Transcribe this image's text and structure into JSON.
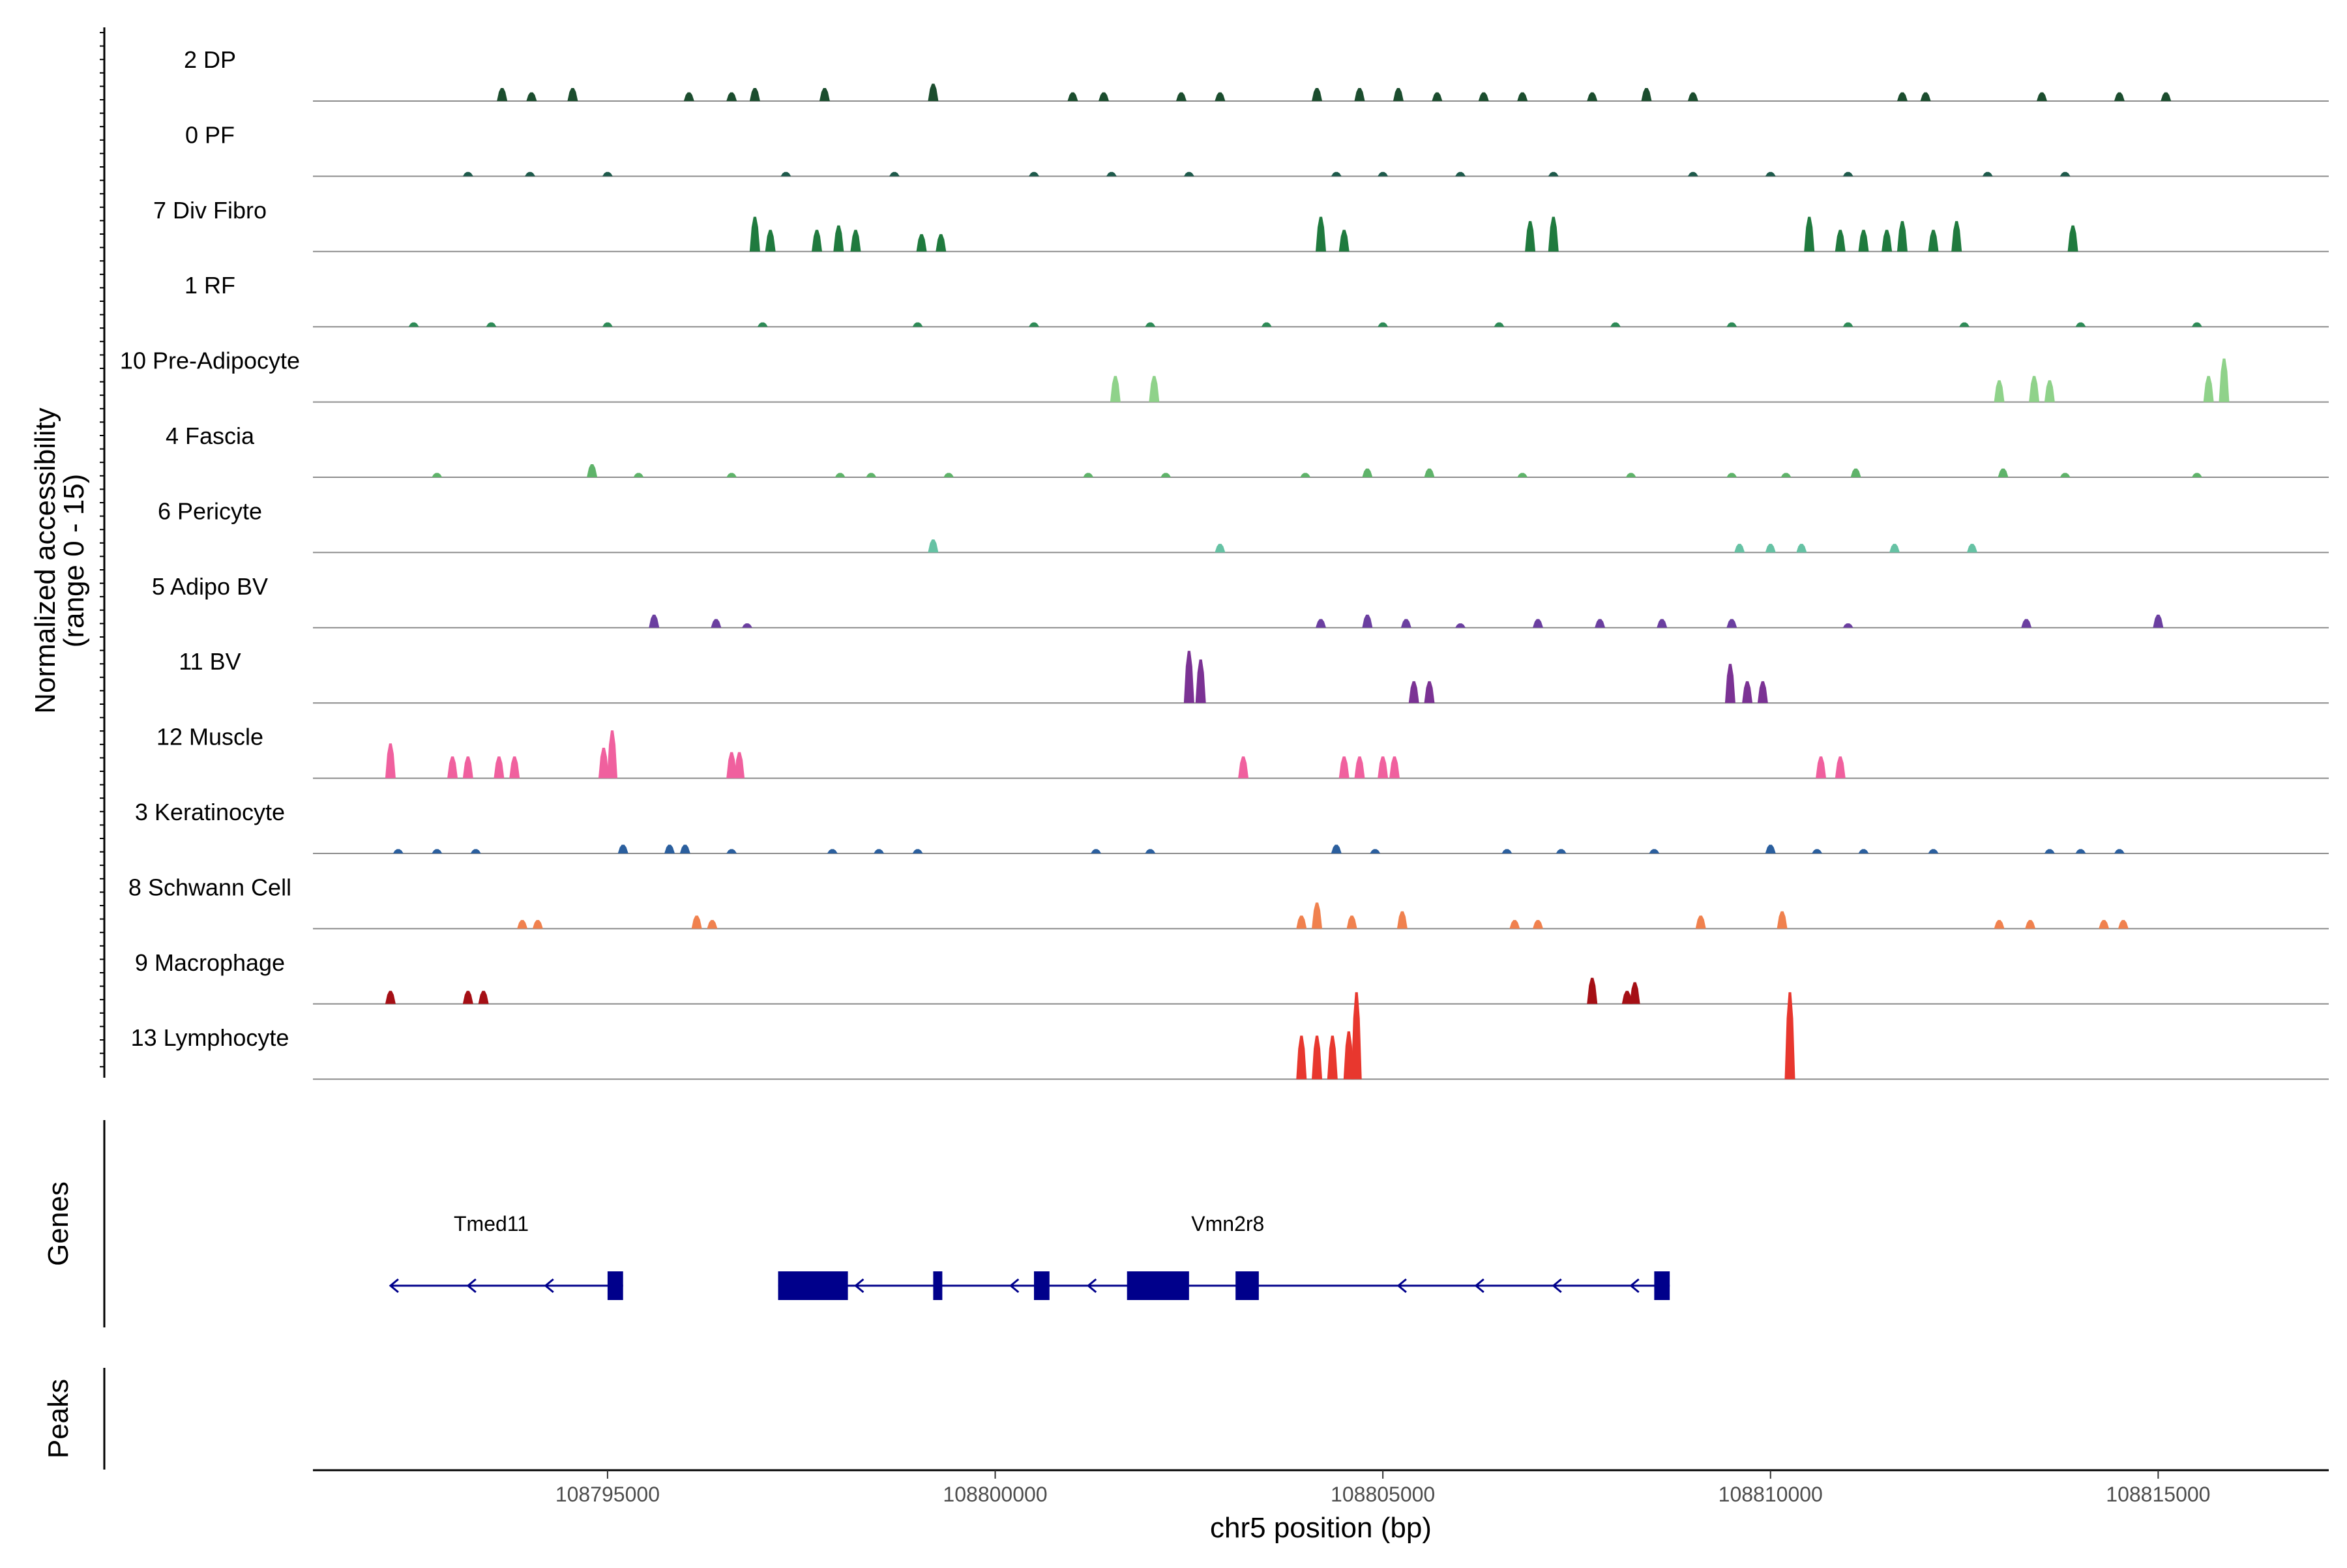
{
  "chart_data": {
    "type": "genome-coverage",
    "chromosome": "chr5",
    "xlim": [
      108791200,
      108817200
    ],
    "ylim": [
      0,
      15
    ],
    "ylabel_line1": "Normalized accessibility",
    "ylabel_line2": "(range 0 - 15)",
    "xlabel": "chr5 position (bp)",
    "xticks": [
      108795000,
      108800000,
      108805000,
      108810000,
      108815000
    ],
    "xtick_labels": [
      "108795000",
      "108800000",
      "108805000",
      "108810000",
      "108815000"
    ],
    "genes_panel_label": "Genes",
    "peaks_panel_label": "Peaks",
    "tracks": [
      {
        "label": "2 DP",
        "color": "#1b4d2e",
        "peaks": [
          [
            108793640,
            3
          ],
          [
            108794020,
            2
          ],
          [
            108794550,
            3
          ],
          [
            108796050,
            2
          ],
          [
            108796600,
            2
          ],
          [
            108796900,
            3
          ],
          [
            108797800,
            3
          ],
          [
            108799200,
            4
          ],
          [
            108801000,
            2
          ],
          [
            108801400,
            2
          ],
          [
            108802400,
            2
          ],
          [
            108802900,
            2
          ],
          [
            108804150,
            3
          ],
          [
            108804700,
            3
          ],
          [
            108805200,
            3
          ],
          [
            108805700,
            2
          ],
          [
            108806300,
            2
          ],
          [
            108806800,
            2
          ],
          [
            108807700,
            2
          ],
          [
            108808400,
            3
          ],
          [
            108809000,
            2
          ],
          [
            108811700,
            2
          ],
          [
            108812000,
            2
          ],
          [
            108813500,
            2
          ],
          [
            108814500,
            2
          ],
          [
            108815100,
            2
          ]
        ]
      },
      {
        "label": "0 PF",
        "color": "#1e5a4b",
        "peaks": [
          [
            108793200,
            1
          ],
          [
            108794000,
            1
          ],
          [
            108795000,
            1
          ],
          [
            108797300,
            1
          ],
          [
            108798700,
            1
          ],
          [
            108800500,
            1
          ],
          [
            108801500,
            1
          ],
          [
            108802500,
            1
          ],
          [
            108804400,
            1
          ],
          [
            108805000,
            1
          ],
          [
            108806000,
            1
          ],
          [
            108807200,
            1
          ],
          [
            108809000,
            1
          ],
          [
            108810000,
            1
          ],
          [
            108811000,
            1
          ],
          [
            108812800,
            1
          ],
          [
            108813800,
            1
          ]
        ]
      },
      {
        "label": "7 Div Fibro",
        "color": "#1f7a3e",
        "peaks": [
          [
            108796900,
            8
          ],
          [
            108797100,
            5
          ],
          [
            108797700,
            5
          ],
          [
            108797980,
            6
          ],
          [
            108798200,
            5
          ],
          [
            108799050,
            4
          ],
          [
            108799300,
            4
          ],
          [
            108804200,
            8
          ],
          [
            108804500,
            5
          ],
          [
            108806900,
            7
          ],
          [
            108807200,
            8
          ],
          [
            108810500,
            8
          ],
          [
            108810900,
            5
          ],
          [
            108811200,
            5
          ],
          [
            108811500,
            5
          ],
          [
            108811700,
            7
          ],
          [
            108812100,
            5
          ],
          [
            108812400,
            7
          ],
          [
            108813900,
            6
          ]
        ]
      },
      {
        "label": "1 RF",
        "color": "#2e8b57",
        "peaks": [
          [
            108792500,
            1
          ],
          [
            108793500,
            1
          ],
          [
            108795000,
            1
          ],
          [
            108797000,
            1
          ],
          [
            108799000,
            1
          ],
          [
            108800500,
            1
          ],
          [
            108802000,
            1
          ],
          [
            108803500,
            1
          ],
          [
            108805000,
            1
          ],
          [
            108806500,
            1
          ],
          [
            108808000,
            1
          ],
          [
            108809500,
            1
          ],
          [
            108811000,
            1
          ],
          [
            108812500,
            1
          ],
          [
            108814000,
            1
          ],
          [
            108815500,
            1
          ]
        ]
      },
      {
        "label": "10 Pre-Adipocyte",
        "color": "#8fd28a",
        "peaks": [
          [
            108801550,
            6
          ],
          [
            108802050,
            6
          ],
          [
            108812950,
            5
          ],
          [
            108813400,
            6
          ],
          [
            108813600,
            5
          ],
          [
            108815650,
            6
          ],
          [
            108815850,
            10
          ]
        ]
      },
      {
        "label": "4 Fascia",
        "color": "#5fb36a",
        "peaks": [
          [
            108792800,
            1
          ],
          [
            108794800,
            3
          ],
          [
            108795400,
            1
          ],
          [
            108796600,
            1
          ],
          [
            108798000,
            1
          ],
          [
            108798400,
            1
          ],
          [
            108799400,
            1
          ],
          [
            108801200,
            1
          ],
          [
            108802200,
            1
          ],
          [
            108804000,
            1
          ],
          [
            108804800,
            2
          ],
          [
            108805600,
            2
          ],
          [
            108806800,
            1
          ],
          [
            108808200,
            1
          ],
          [
            108809500,
            1
          ],
          [
            108810200,
            1
          ],
          [
            108811100,
            2
          ],
          [
            108813000,
            2
          ],
          [
            108813800,
            1
          ],
          [
            108815500,
            1
          ]
        ]
      },
      {
        "label": "6 Pericyte",
        "color": "#66c2a4",
        "peaks": [
          [
            108799200,
            3
          ],
          [
            108802900,
            2
          ],
          [
            108809600,
            2
          ],
          [
            108810000,
            2
          ],
          [
            108810400,
            2
          ],
          [
            108811600,
            2
          ],
          [
            108812600,
            2
          ]
        ]
      },
      {
        "label": "5 Adipo BV",
        "color": "#6b3fa0",
        "peaks": [
          [
            108795600,
            3
          ],
          [
            108796400,
            2
          ],
          [
            108796800,
            1
          ],
          [
            108804200,
            2
          ],
          [
            108804800,
            3
          ],
          [
            108805300,
            2
          ],
          [
            108806000,
            1
          ],
          [
            108807000,
            2
          ],
          [
            108807800,
            2
          ],
          [
            108808600,
            2
          ],
          [
            108809500,
            2
          ],
          [
            108811000,
            1
          ],
          [
            108813300,
            2
          ],
          [
            108815000,
            3
          ]
        ]
      },
      {
        "label": "11 BV",
        "color": "#7b3294",
        "peaks": [
          [
            108802500,
            12
          ],
          [
            108802650,
            10
          ],
          [
            108805400,
            5
          ],
          [
            108805600,
            5
          ],
          [
            108809480,
            9
          ],
          [
            108809700,
            5
          ],
          [
            108809900,
            5
          ]
        ]
      },
      {
        "label": "12 Muscle",
        "color": "#f0609e",
        "peaks": [
          [
            108792200,
            8
          ],
          [
            108793000,
            5
          ],
          [
            108793200,
            5
          ],
          [
            108793600,
            5
          ],
          [
            108793800,
            5
          ],
          [
            108794950,
            7
          ],
          [
            108795060,
            11
          ],
          [
            108796600,
            6
          ],
          [
            108796700,
            6
          ],
          [
            108803200,
            5
          ],
          [
            108804500,
            5
          ],
          [
            108804700,
            5
          ],
          [
            108805000,
            5
          ],
          [
            108805150,
            5
          ],
          [
            108810650,
            5
          ],
          [
            108810900,
            5
          ]
        ]
      },
      {
        "label": "3 Keratinocyte",
        "color": "#2b5f9e",
        "peaks": [
          [
            108792300,
            1
          ],
          [
            108792800,
            1
          ],
          [
            108793300,
            1
          ],
          [
            108795200,
            2
          ],
          [
            108795800,
            2
          ],
          [
            108796000,
            2
          ],
          [
            108796600,
            1
          ],
          [
            108797900,
            1
          ],
          [
            108798500,
            1
          ],
          [
            108799000,
            1
          ],
          [
            108801300,
            1
          ],
          [
            108802000,
            1
          ],
          [
            108804400,
            2
          ],
          [
            108804900,
            1
          ],
          [
            108806600,
            1
          ],
          [
            108807300,
            1
          ],
          [
            108808500,
            1
          ],
          [
            108810000,
            2
          ],
          [
            108810600,
            1
          ],
          [
            108811200,
            1
          ],
          [
            108812100,
            1
          ],
          [
            108813600,
            1
          ],
          [
            108814000,
            1
          ],
          [
            108814500,
            1
          ]
        ]
      },
      {
        "label": "8 Schwann Cell",
        "color": "#f0814e",
        "peaks": [
          [
            108793900,
            2
          ],
          [
            108794100,
            2
          ],
          [
            108796150,
            3
          ],
          [
            108796350,
            2
          ],
          [
            108803950,
            3
          ],
          [
            108804150,
            6
          ],
          [
            108804600,
            3
          ],
          [
            108805250,
            4
          ],
          [
            108806700,
            2
          ],
          [
            108807000,
            2
          ],
          [
            108809100,
            3
          ],
          [
            108810150,
            4
          ],
          [
            108812950,
            2
          ],
          [
            108813350,
            2
          ],
          [
            108814300,
            2
          ],
          [
            108814550,
            2
          ]
        ]
      },
      {
        "label": "9 Macrophage",
        "color": "#a50f15",
        "peaks": [
          [
            108792200,
            3
          ],
          [
            108793200,
            3
          ],
          [
            108793400,
            3
          ],
          [
            108807700,
            6
          ],
          [
            108808150,
            3
          ],
          [
            108808250,
            5
          ]
        ]
      },
      {
        "label": "13 Lymphocyte",
        "color": "#e8372e",
        "peaks": [
          [
            108803950,
            10
          ],
          [
            108804150,
            10
          ],
          [
            108804350,
            10
          ],
          [
            108804560,
            11
          ],
          [
            108804660,
            20
          ],
          [
            108810250,
            20
          ]
        ]
      }
    ],
    "genes": [
      {
        "name": "Tmed11",
        "name_pos": 108793500,
        "strand": "-",
        "start": 108792200,
        "end": 108795200,
        "exons": [
          [
            108795000,
            108795200
          ]
        ],
        "arrows": [
          108792200,
          108793200,
          108794200
        ]
      },
      {
        "name": "Vmn2r8",
        "name_pos": 108803000,
        "strand": "-",
        "start": 108797200,
        "end": 108808700,
        "exons": [
          [
            108797200,
            108798100
          ],
          [
            108799200,
            108799300
          ],
          [
            108800500,
            108800700
          ],
          [
            108801700,
            108802500
          ],
          [
            108803100,
            108803400
          ],
          [
            108808500,
            108808700
          ]
        ],
        "arrows": [
          108798200,
          108800200,
          108801200,
          108805200,
          108806200,
          108807200,
          108808200
        ]
      }
    ]
  }
}
